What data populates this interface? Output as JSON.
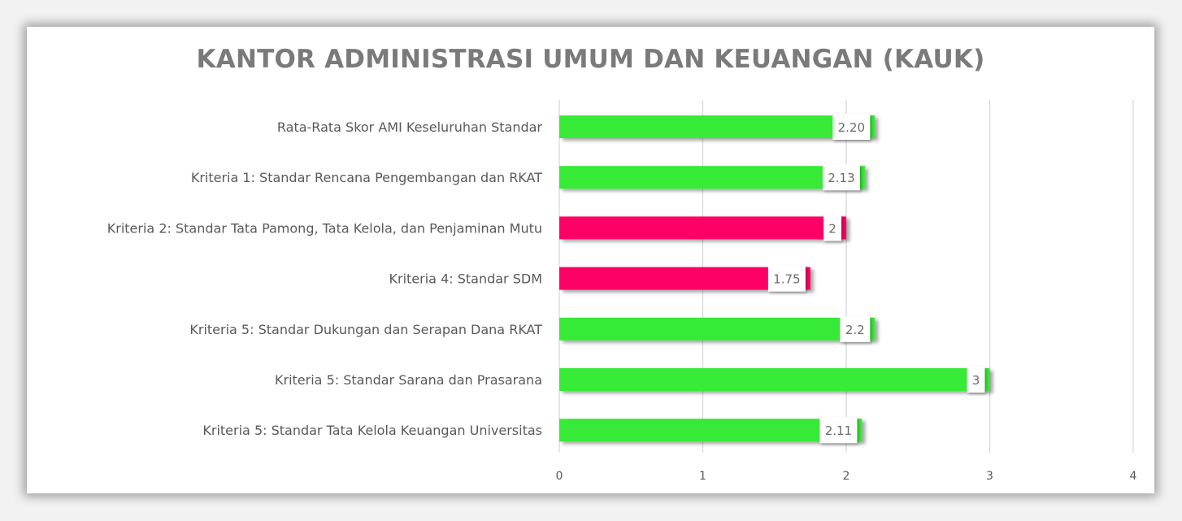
{
  "chart_data": {
    "type": "bar",
    "orientation": "horizontal",
    "title": "KANTOR ADMINISTRASI UMUM DAN KEUANGAN (KAUK)",
    "categories": [
      "Rata-Rata Skor AMI Keseluruhan Standar",
      "Kriteria 1: Standar Rencana Pengembangan dan RKAT",
      "Kriteria 2: Standar Tata Pamong, Tata Kelola, dan Penjaminan Mutu",
      "Kriteria 4: Standar SDM",
      "Kriteria 5: Standar Dukungan dan Serapan Dana RKAT",
      "Kriteria 5: Standar Sarana dan Prasarana",
      "Kriteria 5: Standar Tata Kelola Keuangan Universitas"
    ],
    "values": [
      2.2,
      2.13,
      2,
      1.75,
      2.2,
      3,
      2.11
    ],
    "data_labels": [
      "2.20",
      "2.13",
      "2",
      "1.75",
      "2.2",
      "3",
      "2.11"
    ],
    "bar_colors": [
      "#39ea39",
      "#39ea39",
      "#ff0066",
      "#ff0066",
      "#39ea39",
      "#39ea39",
      "#39ea39"
    ],
    "xlim": [
      0,
      4
    ],
    "x_ticks": [
      "0",
      "1",
      "2",
      "3",
      "4"
    ],
    "grid": "vertical",
    "legend": "none",
    "xlabel": "",
    "ylabel": ""
  }
}
